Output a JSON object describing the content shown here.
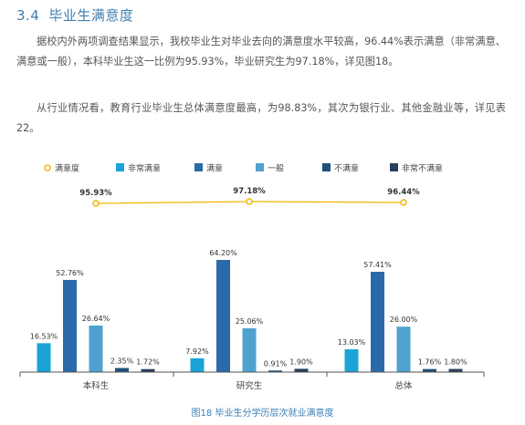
{
  "section": {
    "number": "3.4",
    "title": "毕业生满意度"
  },
  "paragraphs": [
    "据校内外两项调查结果显示，我校毕业生对毕业去向的满意度水平较高，96.44%表示满意（非常满意、满意或一般），本科毕业生这一比例为95.93%，毕业研究生为97.18%，详见图18。",
    "从行业情况看，教育行业毕业生总体满意度最高，为98.83%，其次为银行业、其他金融业等，详见表22。"
  ],
  "caption": "图18  毕业生分学历层次就业满意度",
  "chart_data": {
    "type": "bar",
    "categories": [
      "本科生",
      "研究生",
      "总体"
    ],
    "series": [
      {
        "name": "非常满意",
        "color": "#1aa3d6",
        "values": [
          16.53,
          7.92,
          13.03
        ],
        "labels": [
          "16.53%",
          "7.92%",
          "13.03%"
        ]
      },
      {
        "name": "满意",
        "color": "#2b6aaa",
        "values": [
          52.76,
          64.2,
          57.41
        ],
        "labels": [
          "52.76%",
          "64.20%",
          "57.41%"
        ]
      },
      {
        "name": "一般",
        "color": "#4fa2cf",
        "values": [
          26.64,
          25.06,
          26.0
        ],
        "labels": [
          "26.64%",
          "25.06%",
          "26.00%"
        ]
      },
      {
        "name": "不满意",
        "color": "#1f4f7a",
        "values": [
          2.35,
          0.91,
          1.76
        ],
        "labels": [
          "2.35%",
          "0.91%",
          "1.76%"
        ]
      },
      {
        "name": "非常不满意",
        "color": "#2a3f5c",
        "values": [
          1.72,
          1.9,
          1.8
        ],
        "labels": [
          "1.72%",
          "1.90%",
          "1.80%"
        ]
      }
    ],
    "line": {
      "name": "满意度",
      "color": "#f2b600",
      "values": [
        95.93,
        97.18,
        96.44
      ],
      "labels": [
        "95.93%",
        "97.18%",
        "96.44%"
      ]
    },
    "legend_position": "top",
    "grid": false
  }
}
